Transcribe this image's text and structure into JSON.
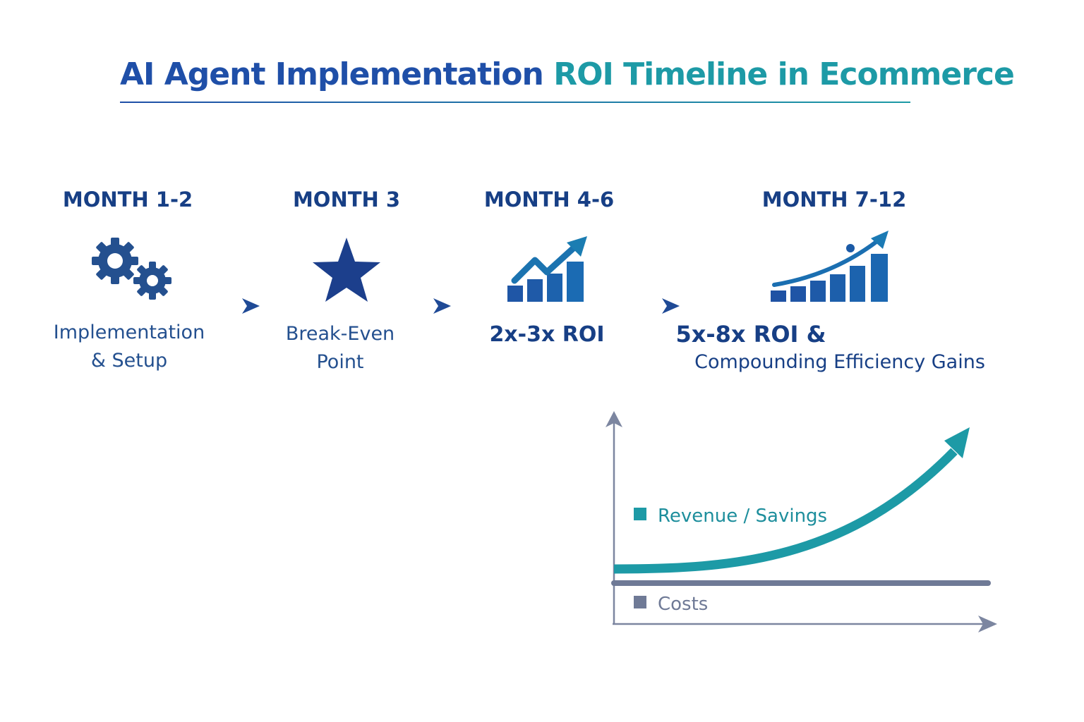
{
  "title": {
    "part1": "AI Agent Implementation",
    "part2": "ROI Timeline in Ecommerce"
  },
  "timeline": [
    {
      "period": "MONTH 1-2",
      "icon": "gears-icon",
      "desc_line1": "Implementation",
      "desc_line2": "& Setup"
    },
    {
      "period": "MONTH 3",
      "icon": "star-icon",
      "desc_line1": "Break-Even",
      "desc_line2": "Point"
    },
    {
      "period": "MONTH 4-6",
      "icon": "growth-chart-icon",
      "desc_line1": "2x-3x ROI"
    },
    {
      "period": "MONTH 7-12",
      "icon": "growth-chart-icon",
      "desc_line1": "5x-8x ROI &",
      "desc_line2": "Compounding Efficiency Gains"
    }
  ],
  "legend": {
    "revenue": "Revenue / Savings",
    "costs": "Costs"
  },
  "colors": {
    "navy": "#173f85",
    "blue": "#1f4fa8",
    "teal": "#1d9aa6",
    "gray": "#6f7a96"
  }
}
